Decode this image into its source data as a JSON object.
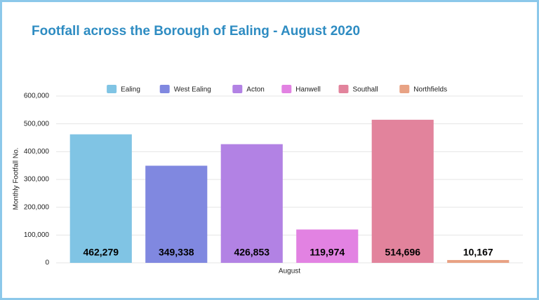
{
  "chart_data": {
    "type": "bar",
    "title": "Footfall across the Borough of Ealing - August 2020",
    "ylabel": "Monthly Footfall No.",
    "categories": [
      "August"
    ],
    "series": [
      {
        "name": "Ealing",
        "color": "#80c4e4",
        "values": [
          462279
        ],
        "value_labels": [
          "462,279"
        ]
      },
      {
        "name": "West Ealing",
        "color": "#8088e0",
        "values": [
          349338
        ],
        "value_labels": [
          "349,338"
        ]
      },
      {
        "name": "Acton",
        "color": "#b282e4",
        "values": [
          426853
        ],
        "value_labels": [
          "426,853"
        ]
      },
      {
        "name": "Hanwell",
        "color": "#e282e2",
        "values": [
          119974
        ],
        "value_labels": [
          "119,974"
        ]
      },
      {
        "name": "Southall",
        "color": "#e2839c",
        "values": [
          514696
        ],
        "value_labels": [
          "514,696"
        ]
      },
      {
        "name": "Northfields",
        "color": "#e8a284",
        "values": [
          10167
        ],
        "value_labels": [
          "10,167"
        ]
      }
    ],
    "ylim": [
      0,
      600000
    ],
    "yticks": [
      0,
      {
        "value": 100000,
        "label": "100,000"
      },
      {
        "value": 200000,
        "label": "200,000"
      },
      {
        "value": 300000,
        "label": "300,000"
      },
      {
        "value": 400000,
        "label": "400,000"
      },
      {
        "value": 500000,
        "label": "500,000"
      },
      {
        "value": 600000,
        "label": "600,000"
      }
    ],
    "grid": true,
    "legend": "top"
  }
}
